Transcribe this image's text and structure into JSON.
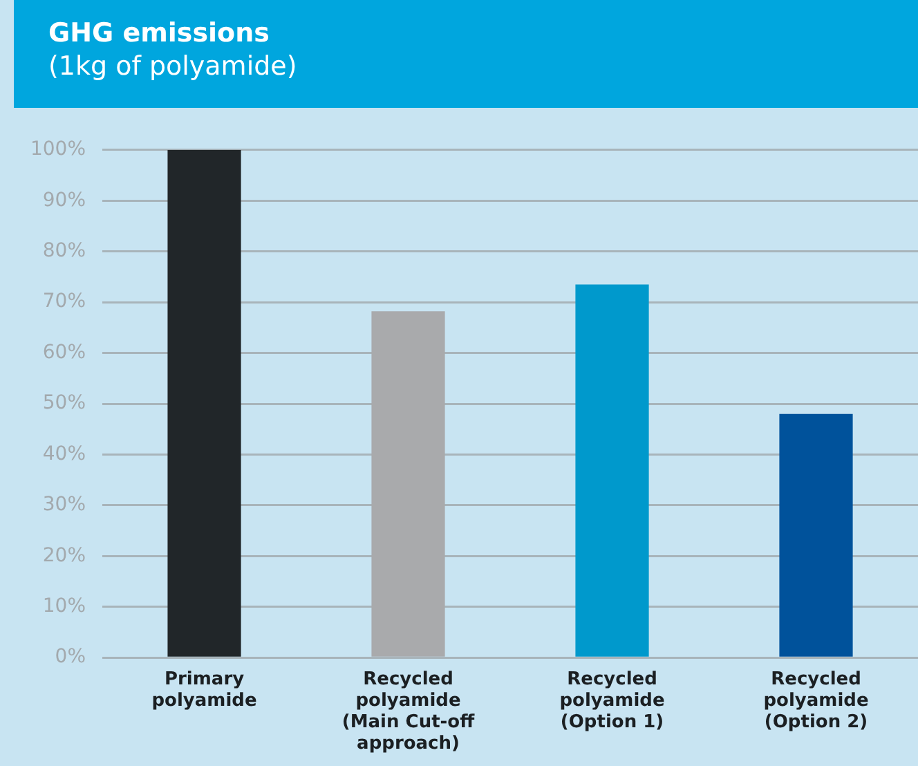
{
  "chart_data": {
    "type": "bar",
    "title": "GHG emissions",
    "subtitle": "(1kg of polyamide)",
    "categories": [
      "Primary\npolyamide",
      "Recycled\npolyamide\n(Main Cut-off\napproach)",
      "Recycled\npolyamide\n(Option 1)",
      "Recycled\npolyamide\n(Option 2)"
    ],
    "values": [
      100,
      68.2,
      73.5,
      48
    ],
    "colors": [
      "#212629",
      "#a9aaac",
      "#0099cc",
      "#00529b"
    ],
    "ylim": [
      0,
      100
    ],
    "yticks": [
      {
        "value": 0,
        "label": "0%"
      },
      {
        "value": 10,
        "label": "10%"
      },
      {
        "value": 20,
        "label": "20%"
      },
      {
        "value": 30,
        "label": "30%"
      },
      {
        "value": 40,
        "label": "40%"
      },
      {
        "value": 50,
        "label": "50%"
      },
      {
        "value": 60,
        "label": "60%"
      },
      {
        "value": 70,
        "label": "70%"
      },
      {
        "value": 80,
        "label": "80%"
      },
      {
        "value": 90,
        "label": "90%"
      },
      {
        "value": 100,
        "label": "100%"
      }
    ],
    "grid": "y",
    "legend": false
  }
}
